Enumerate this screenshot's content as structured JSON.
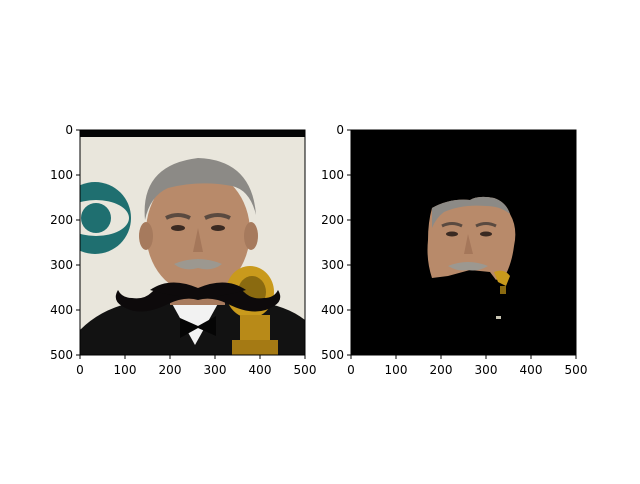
{
  "figure": {
    "panels": [
      {
        "id": "left",
        "description_tag": "face-with-mustache",
        "x_ticks": [
          "0",
          "100",
          "200",
          "300",
          "400",
          "500"
        ],
        "y_ticks": [
          "0",
          "100",
          "200",
          "300",
          "400",
          "500"
        ],
        "xlim": [
          0,
          500
        ],
        "ylim": [
          500,
          0
        ]
      },
      {
        "id": "right",
        "description_tag": "face-mask",
        "x_ticks": [
          "0",
          "100",
          "200",
          "300",
          "400",
          "500"
        ],
        "y_ticks": [
          "0",
          "100",
          "200",
          "300",
          "400",
          "500"
        ],
        "xlim": [
          0,
          500
        ],
        "ylim": [
          500,
          0
        ]
      }
    ]
  },
  "colors": {
    "frame": "#000000",
    "mask_background": "#000000",
    "mustache": "#0d0a0b",
    "skin": "#b88a6a",
    "hair": "#8c8a86",
    "logo_teal": "#1f6f70",
    "background_light": "#e9e6dc",
    "suit": "#111111",
    "trophy_gold": "#c99a1c"
  }
}
